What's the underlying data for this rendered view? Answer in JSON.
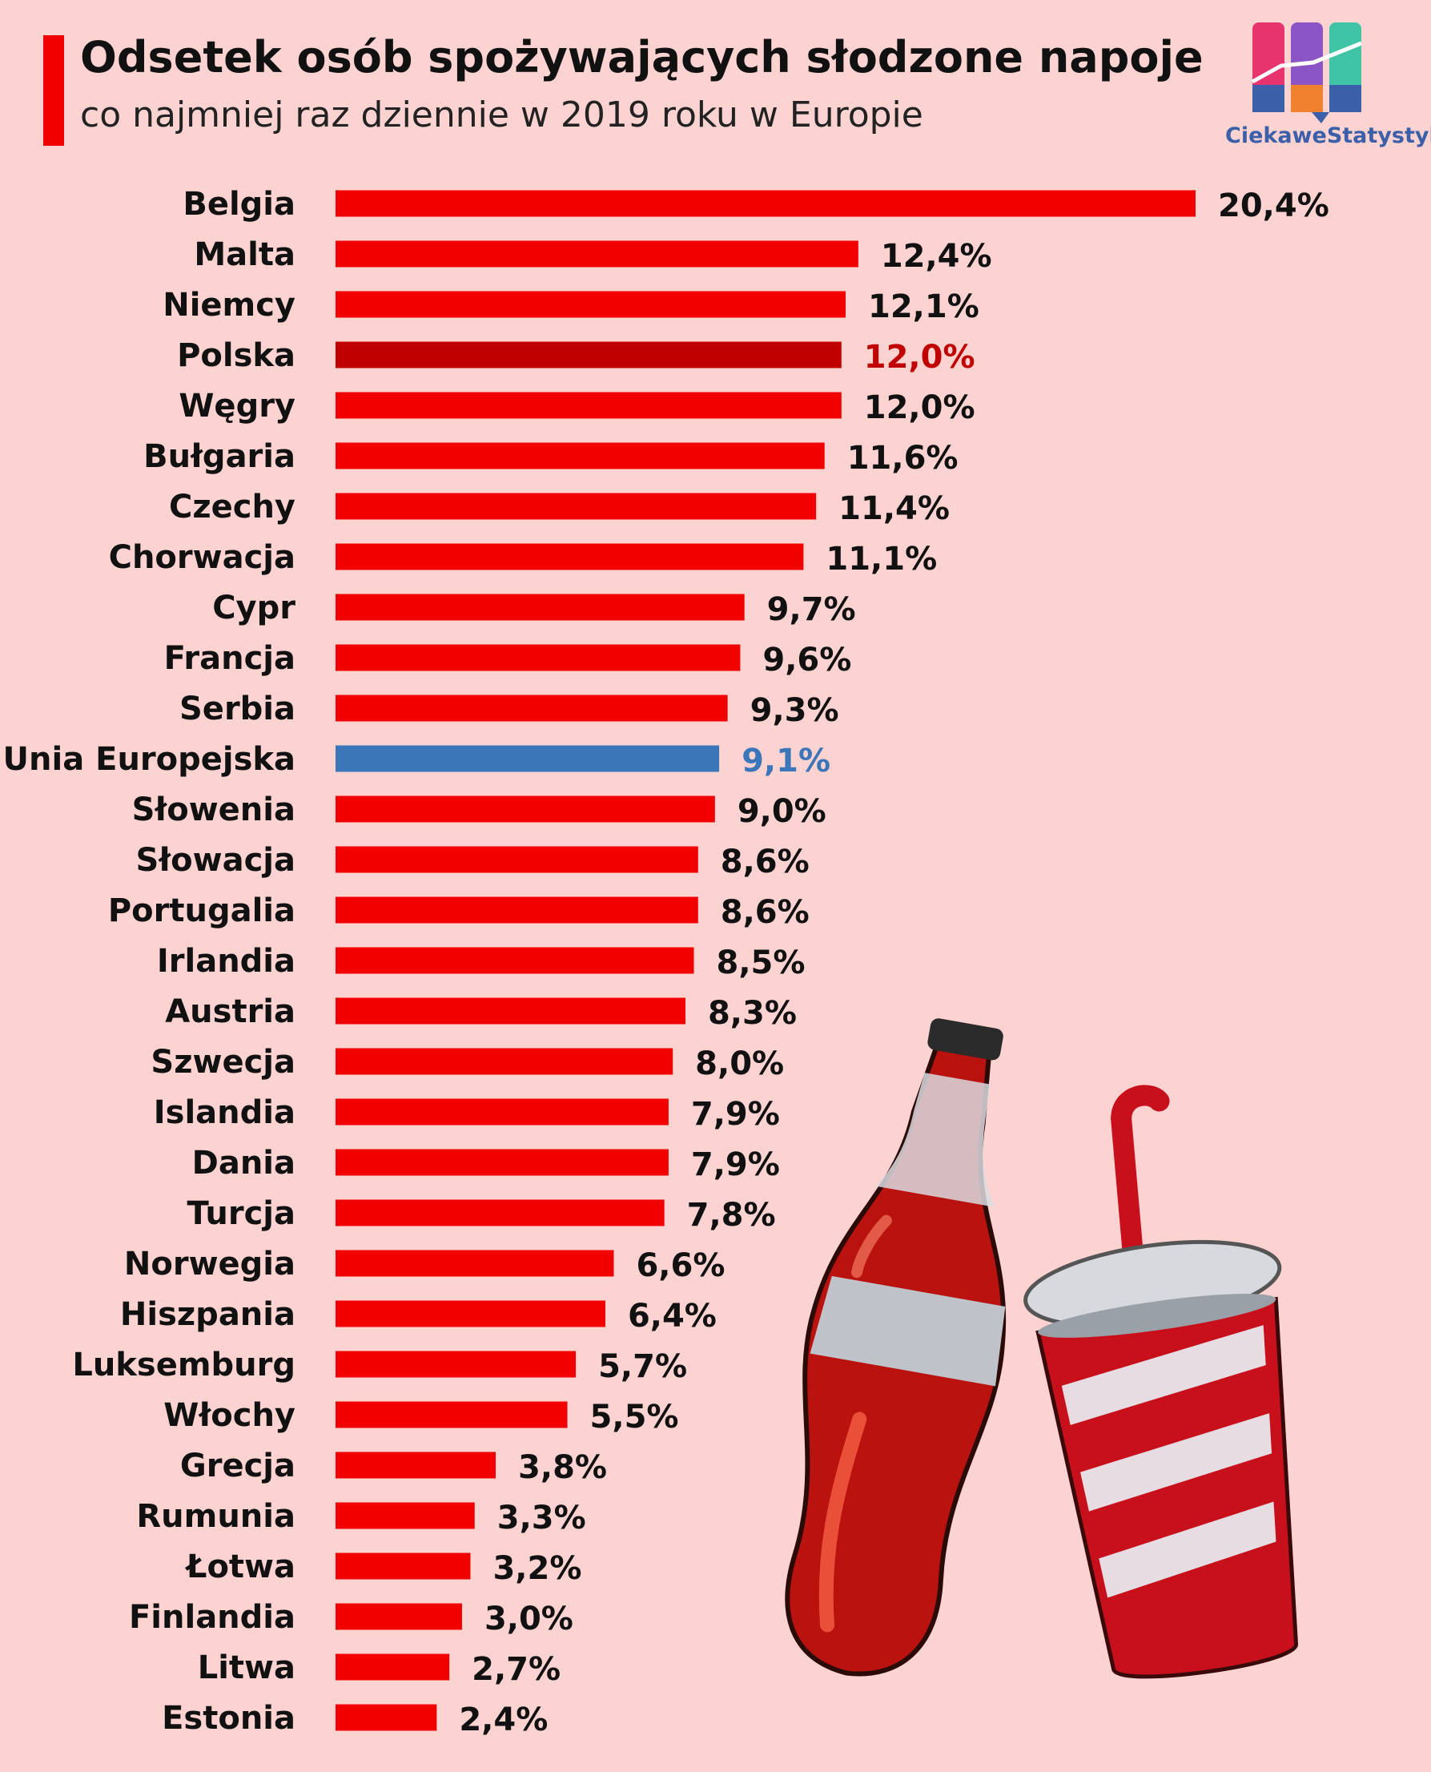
{
  "header": {
    "title": "Odsetek osób spożywających słodzone napoje",
    "subtitle": "co najmniej raz dziennie w 2019 roku w Europie"
  },
  "brand": {
    "name": "CiekaweStatystyki.pl",
    "icon": "bar-chart-logo-icon"
  },
  "colors": {
    "background": "#fdd3d2",
    "bar": "#f20000",
    "highlight_poland": "#c00000",
    "highlight_eu": "#3a76b8",
    "label": "#111111"
  },
  "illustration": {
    "items": [
      "cola-bottle-icon",
      "soda-cup-with-straw-icon"
    ]
  },
  "chart_data": {
    "type": "bar",
    "orientation": "horizontal",
    "unit": "%",
    "categories": [
      "Belgia",
      "Malta",
      "Niemcy",
      "Polska",
      "Węgry",
      "Bułgaria",
      "Czechy",
      "Chorwacja",
      "Cypr",
      "Francja",
      "Serbia",
      "Unia Europejska",
      "Słowenia",
      "Słowacja",
      "Portugalia",
      "Irlandia",
      "Austria",
      "Szwecja",
      "Islandia",
      "Dania",
      "Turcja",
      "Norwegia",
      "Hiszpania",
      "Luksemburg",
      "Włochy",
      "Grecja",
      "Rumunia",
      "Łotwa",
      "Finlandia",
      "Litwa",
      "Estonia"
    ],
    "values": [
      20.4,
      12.4,
      12.1,
      12.0,
      12.0,
      11.6,
      11.4,
      11.1,
      9.7,
      9.6,
      9.3,
      9.1,
      9.0,
      8.6,
      8.6,
      8.5,
      8.3,
      8.0,
      7.9,
      7.9,
      7.8,
      6.6,
      6.4,
      5.7,
      5.5,
      3.8,
      3.3,
      3.2,
      3.0,
      2.7,
      2.4
    ],
    "value_labels": [
      "20,4%",
      "12,4%",
      "12,1%",
      "12,0%",
      "12,0%",
      "11,6%",
      "11,4%",
      "11,1%",
      "9,7%",
      "9,6%",
      "9,3%",
      "9,1%",
      "9,0%",
      "8,6%",
      "8,6%",
      "8,5%",
      "8,3%",
      "8,0%",
      "7,9%",
      "7,9%",
      "7,8%",
      "6,6%",
      "6,4%",
      "5,7%",
      "5,5%",
      "3,8%",
      "3,3%",
      "3,2%",
      "3,0%",
      "2,7%",
      "2,4%"
    ],
    "highlights": {
      "Polska": "highlight_poland",
      "Unia Europejska": "highlight_eu"
    },
    "xlim": [
      0,
      20.4
    ],
    "grid": false,
    "legend": "none"
  }
}
